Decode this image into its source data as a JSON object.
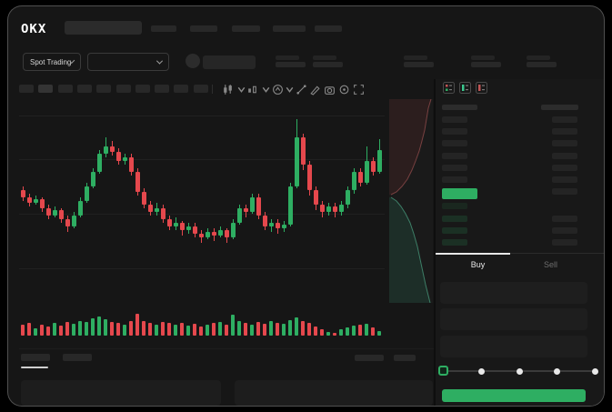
{
  "app": {
    "brand": "OKX"
  },
  "colors": {
    "bg": "#161616",
    "panel": "#181818",
    "green": "#2eae62",
    "red": "#e5484d",
    "skeleton": "#282828",
    "field": "#1e1e1e",
    "tab_active": "#e8e8e8",
    "tab_inactive": "#6d6d6d"
  },
  "header": {
    "nav_bar_widths": [
      28,
      30,
      31,
      36,
      30
    ]
  },
  "market_bar": {
    "selector_label": "Spot Trading",
    "stat_pair_count": 5
  },
  "chart_toolbar": {
    "interval_bar_count": 10,
    "icons": [
      "chart-style-icon",
      "chevron-down-icon",
      "compare-icon",
      "chevron-down-icon",
      "indicators-icon",
      "chevron-down-icon",
      "trend-line-icon",
      "brush-icon",
      "camera-icon",
      "target-icon",
      "fullscreen-icon"
    ]
  },
  "order_book": {
    "view_icons": [
      "book-split-icon",
      "book-bids-icon",
      "book-asks-icon"
    ],
    "ask_row_count": 6,
    "bid_row_count": 4,
    "last_price_highlight_color": "#2eae62"
  },
  "trade_panel": {
    "tabs": [
      {
        "label": "Buy",
        "active": true
      },
      {
        "label": "Sell",
        "active": false
      }
    ],
    "field_count": 3,
    "slider": {
      "stops": 5,
      "value_index": 0
    },
    "submit_color": "#2eae62"
  },
  "chart_data": {
    "type": "candlestick",
    "up_color": "#2eae62",
    "down_color": "#e5484d",
    "grid": true,
    "value_range": [
      0,
      100
    ],
    "candles": [
      [
        56,
        52,
        50,
        58
      ],
      [
        52,
        49,
        47,
        54
      ],
      [
        49,
        51,
        48,
        53
      ],
      [
        51,
        46,
        44,
        52
      ],
      [
        46,
        42,
        40,
        48
      ],
      [
        42,
        45,
        41,
        47
      ],
      [
        45,
        40,
        38,
        46
      ],
      [
        40,
        36,
        33,
        42
      ],
      [
        36,
        42,
        35,
        44
      ],
      [
        42,
        50,
        41,
        52
      ],
      [
        50,
        58,
        49,
        60
      ],
      [
        58,
        66,
        57,
        68
      ],
      [
        66,
        76,
        65,
        78
      ],
      [
        76,
        80,
        74,
        85
      ],
      [
        80,
        77,
        75,
        83
      ],
      [
        77,
        72,
        70,
        79
      ],
      [
        72,
        74,
        70,
        76
      ],
      [
        74,
        66,
        64,
        76
      ],
      [
        66,
        55,
        53,
        68
      ],
      [
        55,
        48,
        46,
        57
      ],
      [
        48,
        44,
        42,
        50
      ],
      [
        44,
        46,
        42,
        49
      ],
      [
        46,
        40,
        38,
        48
      ],
      [
        40,
        36,
        34,
        42
      ],
      [
        36,
        38,
        34,
        41
      ],
      [
        38,
        34,
        31,
        39
      ],
      [
        34,
        36,
        32,
        38
      ],
      [
        36,
        32,
        30,
        38
      ],
      [
        32,
        30,
        27,
        34
      ],
      [
        30,
        33,
        29,
        35
      ],
      [
        33,
        31,
        28,
        35
      ],
      [
        31,
        34,
        30,
        36
      ],
      [
        34,
        30,
        27,
        35
      ],
      [
        30,
        38,
        29,
        40
      ],
      [
        38,
        46,
        37,
        48
      ],
      [
        46,
        44,
        41,
        48
      ],
      [
        44,
        52,
        43,
        54
      ],
      [
        52,
        42,
        40,
        54
      ],
      [
        42,
        36,
        34,
        44
      ],
      [
        36,
        38,
        33,
        40
      ],
      [
        38,
        35,
        32,
        40
      ],
      [
        35,
        37,
        33,
        39
      ],
      [
        37,
        58,
        36,
        60
      ],
      [
        58,
        85,
        57,
        95
      ],
      [
        85,
        70,
        67,
        87
      ],
      [
        70,
        56,
        53,
        72
      ],
      [
        56,
        48,
        45,
        58
      ],
      [
        48,
        44,
        41,
        50
      ],
      [
        44,
        47,
        42,
        49
      ],
      [
        47,
        44,
        41,
        49
      ],
      [
        44,
        48,
        42,
        50
      ],
      [
        48,
        56,
        46,
        58
      ],
      [
        56,
        66,
        54,
        68
      ],
      [
        66,
        60,
        58,
        68
      ],
      [
        60,
        72,
        59,
        80
      ],
      [
        72,
        66,
        64,
        74
      ],
      [
        66,
        78,
        65,
        84
      ]
    ],
    "volumes": [
      0.45,
      0.52,
      0.3,
      0.48,
      0.4,
      0.52,
      0.44,
      0.58,
      0.5,
      0.62,
      0.58,
      0.72,
      0.8,
      0.68,
      0.58,
      0.52,
      0.48,
      0.6,
      0.92,
      0.62,
      0.55,
      0.48,
      0.58,
      0.52,
      0.46,
      0.52,
      0.42,
      0.5,
      0.4,
      0.46,
      0.52,
      0.56,
      0.46,
      0.88,
      0.62,
      0.52,
      0.46,
      0.56,
      0.5,
      0.6,
      0.55,
      0.5,
      0.66,
      0.78,
      0.6,
      0.55,
      0.4,
      0.25,
      0.15,
      0.12,
      0.28,
      0.35,
      0.42,
      0.46,
      0.5,
      0.35,
      0.2
    ],
    "depth_sidebar": {
      "type": "depth-vertical",
      "ask_color": "#b05f5f",
      "bid_color": "#5ac8a0"
    }
  }
}
